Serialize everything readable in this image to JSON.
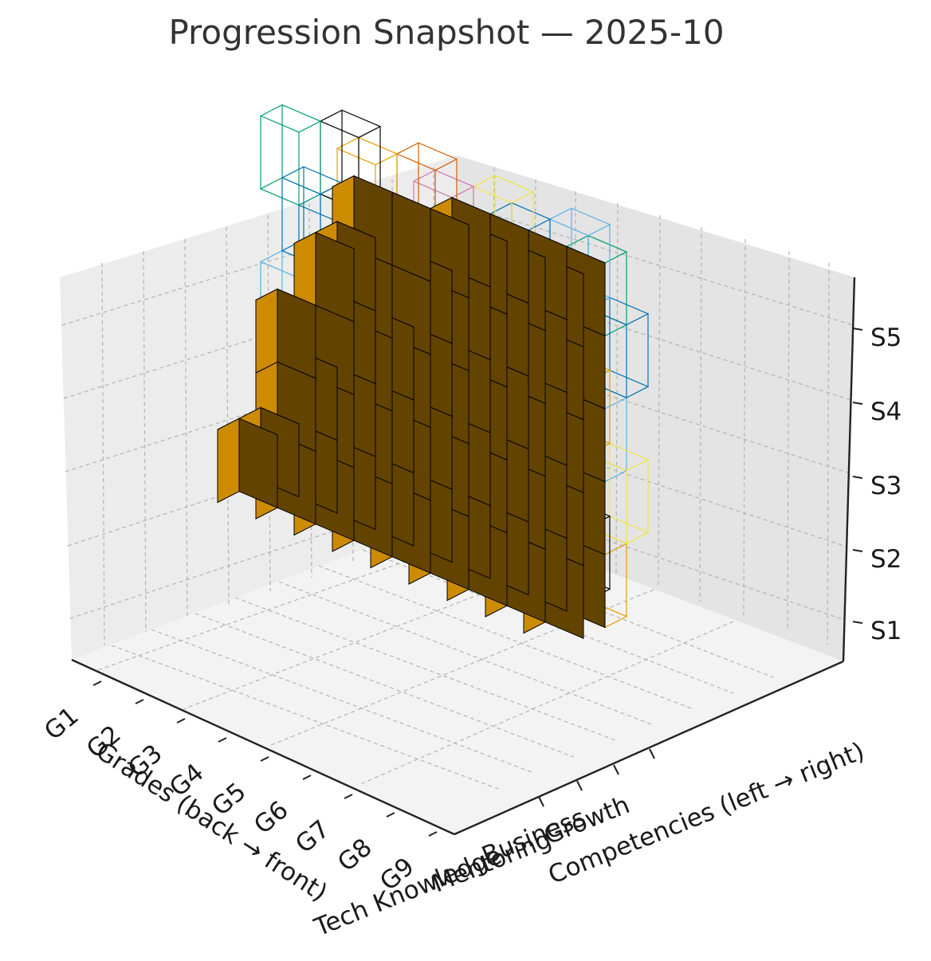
{
  "chart_data": {
    "type": "voxel-3d",
    "title": "Progression Snapshot — 2025-10",
    "xlabel": "Grades (back → front)",
    "ylabel": "Competencies (left → right)",
    "zlabel": "S",
    "grades": [
      "G1",
      "G2",
      "G3",
      "G4",
      "G5",
      "G6",
      "G7",
      "G8",
      "G9"
    ],
    "competencies": [
      "Tech Knowledge",
      "Mentoring",
      "Business",
      "Growth"
    ],
    "stages": [
      "S1",
      "S2",
      "S3",
      "S4",
      "S5"
    ],
    "filled_voxel_color": "#cc8b00",
    "outline_colors": [
      "#e69f00",
      "#56b4e9",
      "#009e73",
      "#f0e442",
      "#0072b2",
      "#d55e00",
      "#cc79a7",
      "#000000"
    ]
  }
}
